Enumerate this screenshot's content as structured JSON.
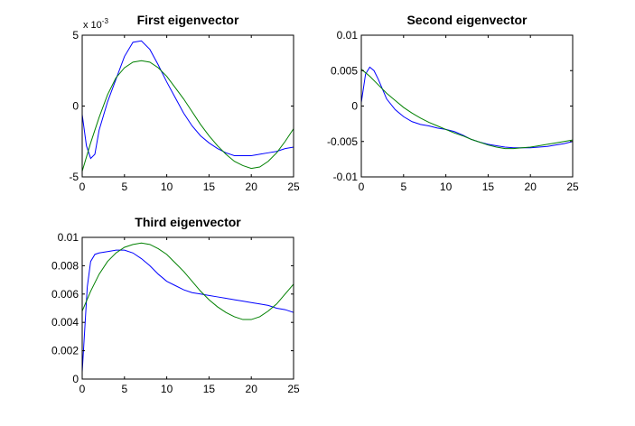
{
  "chart_data": [
    {
      "type": "line",
      "title": "First eigenvector",
      "xlim": [
        0,
        25
      ],
      "ylim": [
        -5,
        5
      ],
      "xticks": [
        "0",
        "5",
        "10",
        "15",
        "20",
        "25"
      ],
      "yticks": [
        "-5",
        "0",
        "5"
      ],
      "exponent": {
        "base": "x 10",
        "power": "-3"
      },
      "grid": false,
      "series": [
        {
          "color": "#0000ff",
          "x": [
            0,
            0.5,
            1,
            1.5,
            2,
            3,
            4,
            5,
            6,
            7,
            8,
            9,
            10,
            11,
            12,
            13,
            14,
            15,
            16,
            17,
            18,
            19,
            20,
            21,
            22,
            23,
            24,
            25
          ],
          "y": [
            -0.6,
            -2.8,
            -3.7,
            -3.4,
            -1.7,
            0.3,
            1.9,
            3.5,
            4.5,
            4.6,
            4.0,
            2.9,
            1.7,
            0.6,
            -0.5,
            -1.4,
            -2.1,
            -2.6,
            -3.0,
            -3.3,
            -3.5,
            -3.5,
            -3.5,
            -3.4,
            -3.3,
            -3.2,
            -3.0,
            -2.9
          ]
        },
        {
          "color": "#008000",
          "x": [
            0,
            1,
            2,
            3,
            4,
            5,
            6,
            7,
            8,
            9,
            10,
            11,
            12,
            13,
            14,
            15,
            16,
            17,
            18,
            19,
            20,
            21,
            22,
            23,
            24,
            25
          ],
          "y": [
            -4.6,
            -2.6,
            -0.8,
            0.8,
            2.0,
            2.7,
            3.1,
            3.2,
            3.1,
            2.7,
            2.1,
            1.3,
            0.5,
            -0.4,
            -1.3,
            -2.1,
            -2.8,
            -3.4,
            -3.9,
            -4.2,
            -4.4,
            -4.3,
            -3.9,
            -3.3,
            -2.5,
            -1.6
          ]
        }
      ]
    },
    {
      "type": "line",
      "title": "Second eigenvector",
      "xlim": [
        0,
        25
      ],
      "ylim": [
        -0.01,
        0.01
      ],
      "xticks": [
        "0",
        "5",
        "10",
        "15",
        "20",
        "25"
      ],
      "yticks": [
        "-0.01",
        "-0.005",
        "0",
        "0.005",
        "0.01"
      ],
      "grid": false,
      "series": [
        {
          "color": "#0000ff",
          "x": [
            0,
            0.5,
            1,
            1.5,
            2,
            3,
            4,
            5,
            6,
            7,
            8,
            9,
            10,
            11,
            12,
            13,
            14,
            15,
            16,
            17,
            18,
            19,
            20,
            21,
            22,
            23,
            24,
            25
          ],
          "y": [
            0.0005,
            0.0045,
            0.0055,
            0.005,
            0.0038,
            0.001,
            -0.0005,
            -0.0015,
            -0.0022,
            -0.0026,
            -0.0028,
            -0.0031,
            -0.0033,
            -0.0036,
            -0.0041,
            -0.0047,
            -0.0051,
            -0.0054,
            -0.0056,
            -0.0058,
            -0.0059,
            -0.0059,
            -0.0059,
            -0.0058,
            -0.0057,
            -0.0055,
            -0.0053,
            -0.005
          ]
        },
        {
          "color": "#008000",
          "x": [
            0,
            1,
            2,
            3,
            4,
            5,
            6,
            7,
            8,
            9,
            10,
            11,
            12,
            13,
            14,
            15,
            16,
            17,
            18,
            19,
            20,
            21,
            22,
            23,
            24,
            25
          ],
          "y": [
            0.0052,
            0.0042,
            0.003,
            0.0018,
            0.0008,
            -0.0002,
            -0.001,
            -0.0017,
            -0.0023,
            -0.0028,
            -0.0033,
            -0.0038,
            -0.0042,
            -0.0047,
            -0.0051,
            -0.0055,
            -0.0058,
            -0.006,
            -0.006,
            -0.0059,
            -0.0058,
            -0.0056,
            -0.0054,
            -0.0052,
            -0.005,
            -0.0048
          ]
        }
      ]
    },
    {
      "type": "line",
      "title": "Third eigenvector",
      "xlim": [
        0,
        25
      ],
      "ylim": [
        0,
        0.01
      ],
      "xticks": [
        "0",
        "5",
        "10",
        "15",
        "20",
        "25"
      ],
      "yticks": [
        "0",
        "0.002",
        "0.004",
        "0.006",
        "0.008",
        "0.01"
      ],
      "grid": false,
      "series": [
        {
          "color": "#0000ff",
          "x": [
            0,
            0.3,
            0.6,
            1,
            1.5,
            2,
            3,
            4,
            5,
            6,
            7,
            8,
            9,
            10,
            11,
            12,
            13,
            14,
            15,
            16,
            17,
            18,
            19,
            20,
            21,
            22,
            23,
            24,
            25
          ],
          "y": [
            0.0005,
            0.0035,
            0.0065,
            0.0083,
            0.0088,
            0.0089,
            0.009,
            0.0091,
            0.0091,
            0.0089,
            0.0085,
            0.008,
            0.0074,
            0.0069,
            0.0066,
            0.0063,
            0.0061,
            0.006,
            0.0059,
            0.0058,
            0.0057,
            0.0056,
            0.0055,
            0.0054,
            0.0053,
            0.0052,
            0.005,
            0.0049,
            0.0047
          ]
        },
        {
          "color": "#008000",
          "x": [
            0,
            1,
            2,
            3,
            4,
            5,
            6,
            7,
            8,
            9,
            10,
            11,
            12,
            13,
            14,
            15,
            16,
            17,
            18,
            19,
            20,
            21,
            22,
            23,
            24,
            25
          ],
          "y": [
            0.0048,
            0.0062,
            0.0074,
            0.0083,
            0.0089,
            0.0093,
            0.0095,
            0.0096,
            0.0095,
            0.0092,
            0.0088,
            0.0082,
            0.0076,
            0.0069,
            0.0062,
            0.0056,
            0.0051,
            0.0047,
            0.0044,
            0.0042,
            0.0042,
            0.0044,
            0.0048,
            0.0053,
            0.006,
            0.0067
          ]
        }
      ]
    }
  ]
}
